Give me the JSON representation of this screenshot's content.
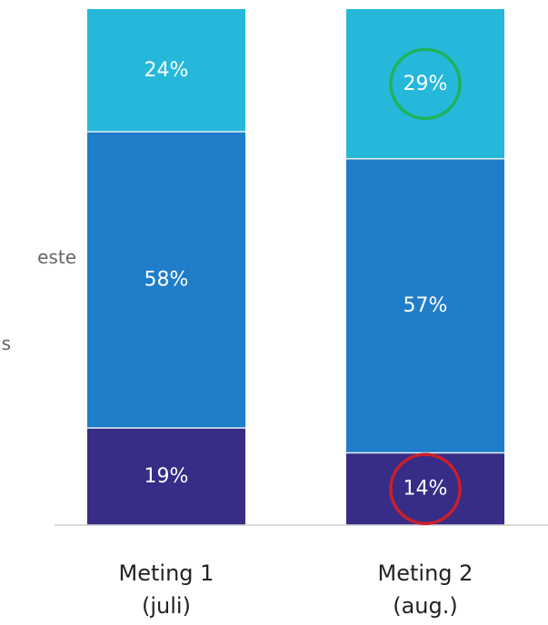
{
  "chart_data": {
    "type": "bar",
    "stacked": true,
    "categories": [
      "Meting 1\n(juli)",
      "Meting 2\n(aug.)"
    ],
    "series": [
      {
        "values": [
          19,
          14
        ],
        "color": "#372C86"
      },
      {
        "values": [
          58,
          57
        ],
        "color": "#1F7DCA"
      },
      {
        "values": [
          24,
          29
        ],
        "color": "#25B8DA"
      }
    ],
    "value_suffix": "%",
    "ylim": [
      0,
      100
    ],
    "grid": false,
    "highlights": [
      {
        "category_index": 1,
        "series_index": 2,
        "color": "#1DB35A"
      },
      {
        "category_index": 1,
        "series_index": 0,
        "color": "#C9202A"
      }
    ]
  },
  "clipped_left_text": [
    "este",
    "s"
  ]
}
